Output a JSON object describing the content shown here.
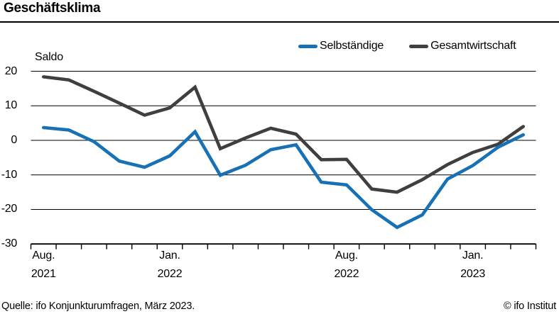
{
  "header": {
    "title": "Geschäftsklima"
  },
  "legend": {
    "items": [
      {
        "label": "Selbständige",
        "color": "#1971b5"
      },
      {
        "label": "Gesamtwirtschaft",
        "color": "#3f3f3f"
      }
    ]
  },
  "chart_data": {
    "type": "line",
    "title": "Geschäftsklima",
    "ylabel": "Saldo",
    "ylim": [
      -30,
      20
    ],
    "yticks": [
      20,
      10,
      0,
      -10,
      -20,
      -30
    ],
    "grid": "horizontal",
    "legend_position": "top-right",
    "x": [
      "2021-08",
      "2021-09",
      "2021-10",
      "2021-11",
      "2021-12",
      "2022-01",
      "2022-02",
      "2022-03",
      "2022-04",
      "2022-05",
      "2022-06",
      "2022-07",
      "2022-08",
      "2022-09",
      "2022-10",
      "2022-11",
      "2022-12",
      "2023-01",
      "2023-02",
      "2023-03"
    ],
    "xtick_labels": [
      {
        "month_index": 0,
        "line1": "Aug.",
        "line2": "2021"
      },
      {
        "month_index": 5,
        "line1": "Jan.",
        "line2": "2022"
      },
      {
        "month_index": 12,
        "line1": "Aug.",
        "line2": "2022"
      },
      {
        "month_index": 17,
        "line1": "Jan.",
        "line2": "2023"
      }
    ],
    "series": [
      {
        "name": "Selbständige",
        "color": "#1971b5",
        "values": [
          3.7,
          3.0,
          -0.4,
          -6.0,
          -7.8,
          -4.5,
          2.5,
          -10.1,
          -7.2,
          -2.7,
          -1.3,
          -12.1,
          -12.9,
          -20.1,
          -25.2,
          -21.6,
          -11.2,
          -7.3,
          -2.0,
          1.6
        ]
      },
      {
        "name": "Gesamtwirtschaft",
        "color": "#3f3f3f",
        "values": [
          18.4,
          17.5,
          14.2,
          10.8,
          7.3,
          9.4,
          15.4,
          -2.4,
          0.7,
          3.5,
          1.8,
          -5.6,
          -5.5,
          -14.1,
          -15.0,
          -11.4,
          -7.0,
          -3.5,
          -1.1,
          4.0
        ]
      }
    ]
  },
  "footer": {
    "source": "Quelle: ifo Konjunkturumfragen, März 2023.",
    "copyright": "© ifo Institut"
  }
}
